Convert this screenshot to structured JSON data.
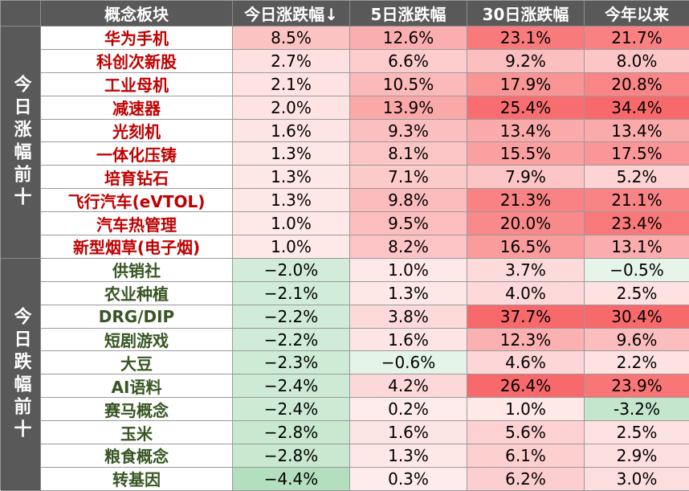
{
  "header": {
    "concept": "概念板块",
    "today": "今日涨跌幅↓",
    "d5": "5日涨跌幅",
    "d30": "30日涨跌幅",
    "ytd": "今年以来"
  },
  "groups": [
    {
      "label": "今日涨幅前十",
      "type": "up",
      "rows": [
        {
          "name": "华为手机",
          "today": "8.5%",
          "d5": "12.6%",
          "d30": "23.1%",
          "ytd": "21.7%"
        },
        {
          "name": "科创次新股",
          "today": "2.7%",
          "d5": "6.6%",
          "d30": "9.2%",
          "ytd": "8.0%"
        },
        {
          "name": "工业母机",
          "today": "2.1%",
          "d5": "10.5%",
          "d30": "17.9%",
          "ytd": "20.8%"
        },
        {
          "name": "减速器",
          "today": "2.0%",
          "d5": "13.9%",
          "d30": "25.4%",
          "ytd": "34.4%"
        },
        {
          "name": "光刻机",
          "today": "1.6%",
          "d5": "9.3%",
          "d30": "13.4%",
          "ytd": "13.4%"
        },
        {
          "name": "一体化压铸",
          "today": "1.3%",
          "d5": "8.1%",
          "d30": "15.5%",
          "ytd": "17.5%"
        },
        {
          "name": "培育钻石",
          "today": "1.3%",
          "d5": "7.1%",
          "d30": "7.9%",
          "ytd": "5.2%"
        },
        {
          "name": "飞行汽车(eVTOL)",
          "today": "1.3%",
          "d5": "9.8%",
          "d30": "21.3%",
          "ytd": "21.1%"
        },
        {
          "name": "汽车热管理",
          "today": "1.0%",
          "d5": "9.5%",
          "d30": "20.0%",
          "ytd": "23.4%"
        },
        {
          "name": "新型烟草(电子烟)",
          "today": "1.0%",
          "d5": "8.2%",
          "d30": "16.5%",
          "ytd": "13.1%"
        }
      ]
    },
    {
      "label": "今日跌幅前十",
      "type": "down",
      "rows": [
        {
          "name": "供销社",
          "today": "−2.0%",
          "d5": "1.0%",
          "d30": "3.7%",
          "ytd": "−0.5%"
        },
        {
          "name": "农业种植",
          "today": "−2.1%",
          "d5": "1.3%",
          "d30": "4.0%",
          "ytd": "2.5%"
        },
        {
          "name": "DRG/DIP",
          "today": "−2.2%",
          "d5": "3.8%",
          "d30": "37.7%",
          "ytd": "30.4%"
        },
        {
          "name": "短剧游戏",
          "today": "−2.2%",
          "d5": "1.6%",
          "d30": "12.3%",
          "ytd": "9.6%"
        },
        {
          "name": "大豆",
          "today": "−2.3%",
          "d5": "−0.6%",
          "d30": "4.6%",
          "ytd": "2.2%"
        },
        {
          "name": "AI语料",
          "today": "−2.4%",
          "d5": "4.2%",
          "d30": "26.4%",
          "ytd": "23.9%"
        },
        {
          "name": "赛马概念",
          "today": "−2.4%",
          "d5": "0.2%",
          "d30": "1.0%",
          "ytd": "-3.2%"
        },
        {
          "name": "玉米",
          "today": "−2.8%",
          "d5": "1.6%",
          "d30": "5.6%",
          "ytd": "2.5%"
        },
        {
          "name": "粮食概念",
          "today": "−2.8%",
          "d5": "1.3%",
          "d30": "6.1%",
          "ytd": "2.9%"
        },
        {
          "name": "转基因",
          "today": "−4.4%",
          "d5": "0.3%",
          "d30": "6.2%",
          "ytd": "3.0%"
        }
      ]
    }
  ],
  "colors": {
    "header_bg": "#595959",
    "up_text": "#c00000",
    "down_text": "#375623",
    "heat_positive": "#f8696b",
    "heat_negative": "#63be7b",
    "neutral": "#ffffff"
  }
}
